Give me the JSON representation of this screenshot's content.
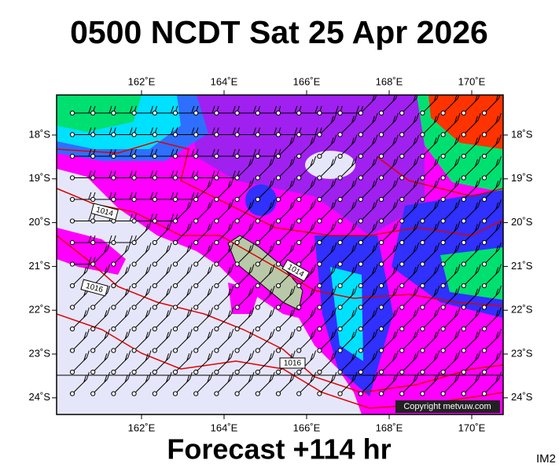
{
  "title": "0500 NCDT Sat 25 Apr 2026",
  "footer": "Forecast +114 hr",
  "corner_label": "IM2",
  "map": {
    "lon_labels": [
      "162˚E",
      "164˚E",
      "166˚E",
      "168˚E",
      "170˚E"
    ],
    "lat_labels": [
      "18˚S",
      "19˚S",
      "20˚S",
      "21˚S",
      "22˚S",
      "23˚S",
      "24˚S"
    ],
    "isobar_labels": [
      "1014",
      "1014",
      "1016",
      "1016"
    ],
    "copyright": "Copyright metvuw.com"
  }
}
